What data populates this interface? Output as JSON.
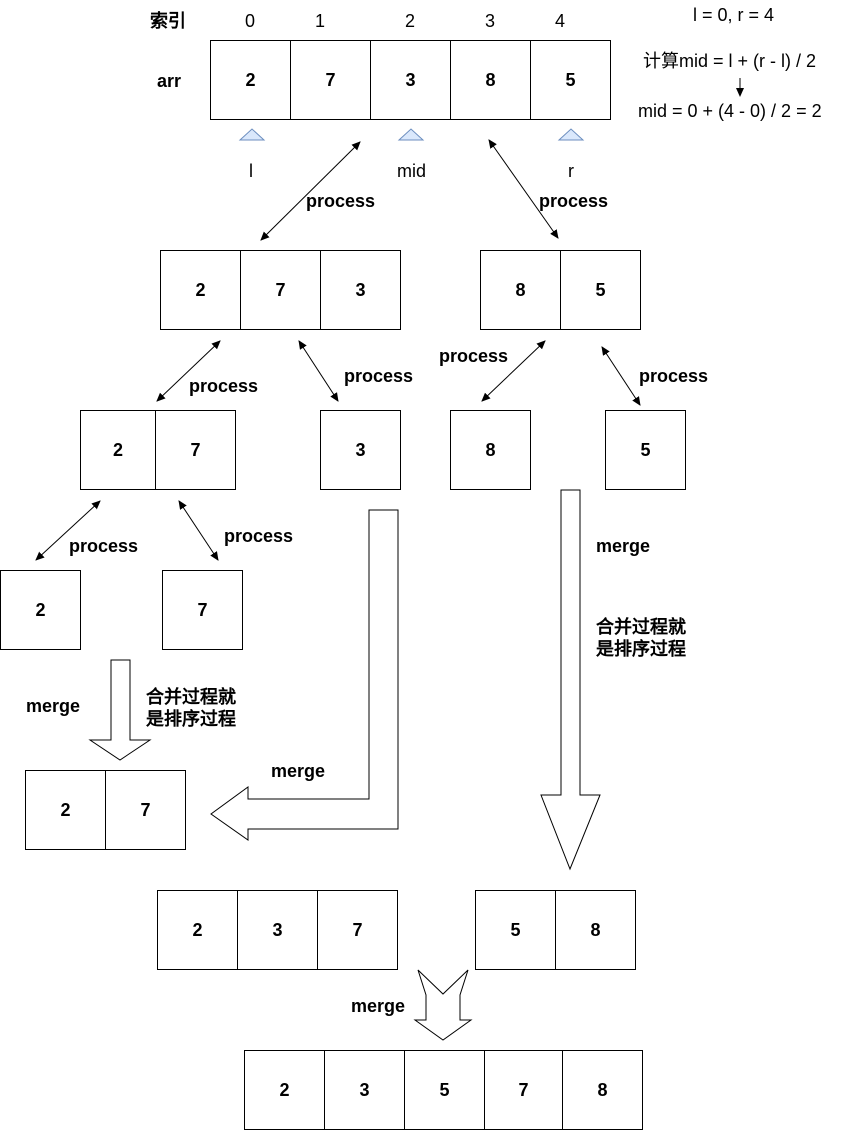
{
  "header": {
    "index_label": "索引",
    "arr_label": "arr",
    "indices": [
      "0",
      "1",
      "2",
      "3",
      "4"
    ]
  },
  "notes": {
    "lr": "l = 0, r = 4",
    "formula": "计算mid = l + (r - l) / 2",
    "mid_calc": "mid = 0 + (4 - 0) / 2 = 2"
  },
  "pointers": {
    "l": "l",
    "mid": "mid",
    "r": "r"
  },
  "arrays": {
    "original": [
      "2",
      "7",
      "3",
      "8",
      "5"
    ],
    "left_half": [
      "2",
      "7",
      "3"
    ],
    "right_half": [
      "8",
      "5"
    ],
    "left_left": [
      "2",
      "7"
    ],
    "single_3": [
      "3"
    ],
    "single_8": [
      "8"
    ],
    "single_5": [
      "5"
    ],
    "single_2": [
      "2"
    ],
    "single_7": [
      "7"
    ],
    "merged_27": [
      "2",
      "7"
    ],
    "merged_237": [
      "2",
      "3",
      "7"
    ],
    "merged_58": [
      "5",
      "8"
    ],
    "final": [
      "2",
      "3",
      "5",
      "7",
      "8"
    ]
  },
  "labels": {
    "process": "process",
    "merge": "merge",
    "sort_note": "合并过程就\n是排序过程"
  },
  "colors": {
    "pointer": "#dae8fc",
    "pointer_stroke": "#6c8ebf",
    "line": "#000000"
  }
}
